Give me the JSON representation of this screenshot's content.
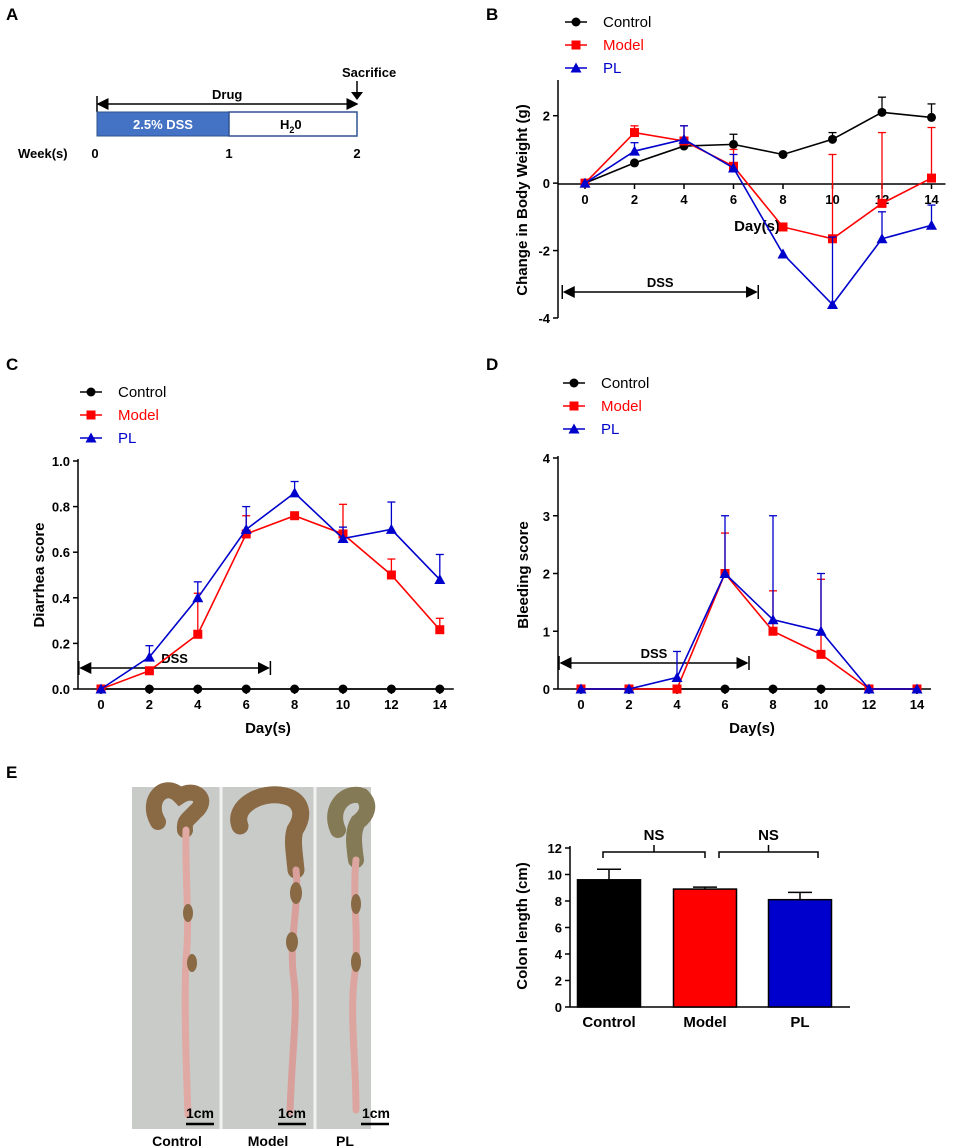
{
  "colors": {
    "control": "#000000",
    "model": "#ff0000",
    "pl": "#0000cc",
    "dss_box": "#4472c4",
    "photo_bg": "#c9cbc9",
    "colon": "#8a6a45"
  },
  "panel_labels": {
    "a": "A",
    "b": "B",
    "c": "C",
    "d": "D",
    "e": "E"
  },
  "timeline": {
    "sacrifice": "Sacrifice",
    "drug": "Drug",
    "dss_label": "2.5% DSS",
    "water_label": "H",
    "water_sub": "2",
    "water_tail": "0",
    "week_label": "Week(s)",
    "weeks": [
      "0",
      "1",
      "2"
    ]
  },
  "legend": {
    "control": "Control",
    "model": "Model",
    "pl": "PL"
  },
  "photo": {
    "labels": [
      "Control",
      "Model",
      "PL"
    ],
    "scale": "1cm"
  },
  "chart_data": [
    {
      "id": "b",
      "type": "line",
      "xlabel": "Day(s)",
      "ylabel": "Change in Body Weight (g)",
      "x": [
        0,
        2,
        4,
        6,
        8,
        10,
        12,
        14
      ],
      "x_ticks": [
        "0",
        "2",
        "4",
        "6",
        "8",
        "10",
        "12",
        "14"
      ],
      "y_ticks": [
        "-4",
        "-2",
        "0",
        "2"
      ],
      "y_tick_values": [
        -4,
        -2,
        0,
        2
      ],
      "ylim": [
        -4,
        3
      ],
      "annotation": "DSS",
      "dss_range": [
        -1,
        7
      ],
      "series": [
        {
          "name": "Control",
          "marker": "circle",
          "values": [
            0,
            0.6,
            1.1,
            1.15,
            0.85,
            1.3,
            2.1,
            1.95
          ],
          "err": [
            0,
            0.05,
            0.1,
            0.3,
            0,
            0.2,
            0.45,
            0.4
          ]
        },
        {
          "name": "Model",
          "marker": "square",
          "values": [
            0,
            1.5,
            1.25,
            0.5,
            -1.3,
            -1.65,
            -0.6,
            0.15
          ],
          "err": [
            0,
            0.2,
            0.45,
            0.5,
            0,
            2.5,
            2.1,
            1.5
          ]
        },
        {
          "name": "PL",
          "marker": "triangle",
          "values": [
            0,
            0.95,
            1.3,
            0.45,
            -2.1,
            -3.6,
            -1.65,
            -1.25
          ],
          "err": [
            0,
            0.25,
            0.4,
            0.4,
            0,
            2.0,
            0.8,
            0.6
          ]
        }
      ]
    },
    {
      "id": "c",
      "type": "line",
      "xlabel": "Day(s)",
      "ylabel": "Diarrhea score",
      "x": [
        0,
        2,
        4,
        6,
        8,
        10,
        12,
        14
      ],
      "x_ticks": [
        "0",
        "2",
        "4",
        "6",
        "8",
        "10",
        "12",
        "14"
      ],
      "y_ticks": [
        "0.0",
        "0.2",
        "0.4",
        "0.6",
        "0.8",
        "1.0"
      ],
      "y_tick_values": [
        0,
        0.2,
        0.4,
        0.6,
        0.8,
        1.0
      ],
      "ylim": [
        0,
        1.0
      ],
      "annotation": "DSS",
      "dss_range": [
        -1,
        7
      ],
      "series": [
        {
          "name": "Control",
          "marker": "circle",
          "values": [
            0,
            0,
            0,
            0,
            0,
            0,
            0,
            0
          ],
          "err": [
            0,
            0,
            0,
            0,
            0,
            0,
            0,
            0
          ]
        },
        {
          "name": "Model",
          "marker": "square",
          "values": [
            0,
            0.08,
            0.24,
            0.68,
            0.76,
            0.68,
            0.5,
            0.26
          ],
          "err": [
            0,
            0,
            0.18,
            0.08,
            0,
            0.13,
            0.07,
            0.05
          ]
        },
        {
          "name": "PL",
          "marker": "triangle",
          "values": [
            0,
            0.14,
            0.4,
            0.7,
            0.86,
            0.66,
            0.7,
            0.48
          ],
          "err": [
            0,
            0.05,
            0.07,
            0.1,
            0.05,
            0.05,
            0.12,
            0.11
          ]
        }
      ]
    },
    {
      "id": "d",
      "type": "line",
      "xlabel": "Day(s)",
      "ylabel": "Bleeding score",
      "x": [
        0,
        2,
        4,
        6,
        8,
        10,
        12,
        14
      ],
      "x_ticks": [
        "0",
        "2",
        "4",
        "6",
        "8",
        "10",
        "12",
        "14"
      ],
      "y_ticks": [
        "0",
        "1",
        "2",
        "3",
        "4"
      ],
      "y_tick_values": [
        0,
        1,
        2,
        3,
        4
      ],
      "ylim": [
        0,
        4
      ],
      "annotation": "DSS",
      "dss_range": [
        -1,
        7
      ],
      "series": [
        {
          "name": "Control",
          "marker": "circle",
          "values": [
            0,
            0,
            0,
            0,
            0,
            0,
            0,
            0
          ],
          "err": [
            0,
            0,
            0,
            0,
            0,
            0,
            0,
            0
          ]
        },
        {
          "name": "Model",
          "marker": "square",
          "values": [
            0,
            0,
            0,
            2.0,
            1.0,
            0.6,
            0,
            0
          ],
          "err": [
            0,
            0,
            0,
            0.7,
            0.7,
            1.3,
            0,
            0
          ]
        },
        {
          "name": "PL",
          "marker": "triangle",
          "values": [
            0,
            0,
            0.2,
            2.0,
            1.2,
            1.0,
            0,
            0
          ],
          "err": [
            0,
            0,
            0.45,
            1.0,
            1.8,
            1.0,
            0,
            0
          ]
        }
      ]
    },
    {
      "id": "e",
      "type": "bar",
      "ylabel": "Colon length  (cm)",
      "categories": [
        "Control",
        "Model",
        "PL"
      ],
      "values": [
        9.6,
        8.9,
        8.1
      ],
      "err": [
        0.8,
        0.15,
        0.55
      ],
      "y_ticks": [
        "0",
        "2",
        "4",
        "6",
        "8",
        "10",
        "12"
      ],
      "y_tick_values": [
        0,
        2,
        4,
        6,
        8,
        10,
        12
      ],
      "ylim": [
        0,
        12
      ],
      "significance": [
        "NS",
        "NS"
      ]
    }
  ]
}
